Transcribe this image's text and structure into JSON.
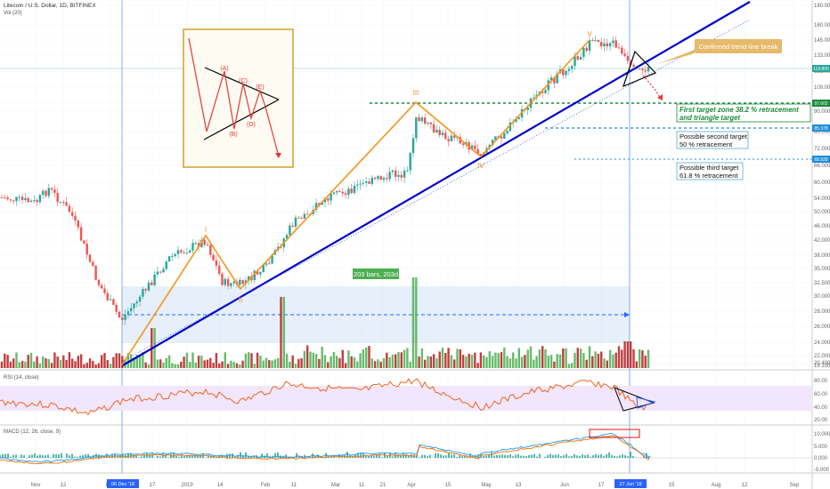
{
  "header": {
    "symbol": "Litecoin / U.S. Dollar, 1D, BITFINEX",
    "volume_label": "Vol (20)"
  },
  "rsi_label": "RSI (14, close)",
  "macd_label": "MACD (12, 26, close, 9)",
  "price_axis": {
    "ticks": [
      "180.000",
      "160.000",
      "145.000",
      "133.000",
      "121.000",
      "109.000",
      "97.600",
      "90.000",
      "80.000",
      "72.000",
      "66.000",
      "60.000",
      "54.000",
      "50.000",
      "46.000",
      "42.000",
      "38.000",
      "35.000",
      "32.500",
      "30.000",
      "28.000",
      "26.000",
      "24.000",
      "22.000",
      "20.400",
      "19.100"
    ],
    "price_badges": [
      "119.800",
      "97.602",
      "85.378",
      "68.928"
    ]
  },
  "rsi_axis": {
    "ticks": [
      "80.00",
      "60.00",
      "40.00",
      "20.00"
    ]
  },
  "macd_axis": {
    "ticks": [
      "10.000",
      "5.000",
      "0.000",
      "-5.000"
    ]
  },
  "time_axis": {
    "ticks": [
      "Nov",
      "12",
      "Dec",
      "17",
      "2019",
      "14",
      "Feb",
      "11",
      "Mar",
      "11",
      "21",
      "Apr",
      "15",
      "May",
      "13",
      "Jun",
      "17",
      "Jul",
      "15",
      "Aug",
      "12",
      "Sep"
    ],
    "start_badge": "06 Dec '18",
    "end_badge": "27 Jun '19"
  },
  "annotations": {
    "wave_labels": [
      "I",
      "II",
      "III",
      "IV",
      "V"
    ],
    "triangle_legs": [
      "(A)",
      "(B)",
      "(C)",
      "(D)",
      "(E)"
    ],
    "trend_break_callout": "Confirmed trend-line break",
    "target1_line1": "First target zone 38.2 % retracement",
    "target1_line2": "and triangle target",
    "target2_line1": "Possible second target",
    "target2_line2": "50 % retracement",
    "target3_line1": "Possible third target",
    "target3_line2": "61.8 % retracement",
    "range_label": "203 bars, 203d"
  },
  "colors": {
    "up": "#26a69a",
    "down": "#ef5350",
    "trendline": "#0000cc",
    "waves": "#f7931a",
    "target1": "#1b8a3b",
    "target_blue": "#1f8cd8",
    "rsi": "#f0641e",
    "macd": "#2196f3",
    "signal": "#ff6d00"
  },
  "chart_data": {
    "type": "candlestick",
    "title": "Litecoin / U.S. Dollar, 1D, BITFINEX",
    "scale": "log",
    "x_range": [
      "Nov 2018",
      "Sep 2019"
    ],
    "y_range": [
      19.1,
      180
    ],
    "key_points": [
      {
        "label": "I",
        "date": "Jan 2019",
        "price": 42
      },
      {
        "label": "II",
        "date": "Jan 2019",
        "price": 30
      },
      {
        "label": "III",
        "date": "Apr 2019",
        "price": 95
      },
      {
        "label": "IV",
        "date": "May 2019",
        "price": 70
      },
      {
        "label": "V",
        "date": "Jun 2019",
        "price": 146
      }
    ],
    "levels": [
      {
        "name": "First target zone 38.2 % retracement",
        "price": 97.602
      },
      {
        "name": "Possible second target 50 % retracement",
        "price": 85.378
      },
      {
        "name": "Possible third target 61.8 % retracement",
        "price": 68.928
      },
      {
        "name": "last price",
        "price": 119.8
      }
    ],
    "grid": true
  }
}
